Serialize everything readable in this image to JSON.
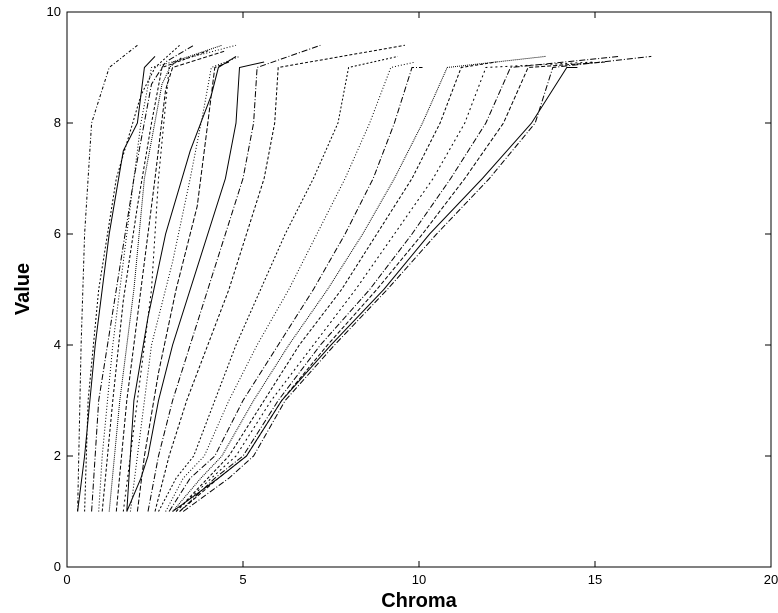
{
  "chart_data": {
    "type": "line",
    "title": "",
    "xlabel": "Chroma",
    "ylabel": "Value",
    "xlim": [
      0,
      20
    ],
    "ylim": [
      0,
      10
    ],
    "xticks": [
      0,
      5,
      10,
      15,
      20
    ],
    "yticks": [
      0,
      2,
      4,
      6,
      8,
      10
    ],
    "grid": false,
    "legend": "none",
    "line_color": "#000000",
    "series": [
      {
        "dash": "3,2,1,2",
        "points": [
          [
            0.3,
            1
          ],
          [
            0.4,
            4
          ],
          [
            0.5,
            6
          ],
          [
            0.7,
            8
          ],
          [
            1.2,
            9
          ],
          [
            2.0,
            9.4
          ]
        ]
      },
      {
        "dash": "",
        "points": [
          [
            0.3,
            1
          ],
          [
            0.5,
            2
          ],
          [
            0.8,
            4
          ],
          [
            1.2,
            6
          ],
          [
            1.6,
            7.5
          ],
          [
            2.0,
            8
          ],
          [
            2.2,
            9
          ],
          [
            2.5,
            9.2
          ]
        ]
      },
      {
        "dash": "2,2",
        "points": [
          [
            0.5,
            1
          ],
          [
            0.6,
            3
          ],
          [
            0.9,
            5
          ],
          [
            1.4,
            7
          ],
          [
            2.1,
            8.5
          ],
          [
            2.5,
            9
          ],
          [
            3.2,
            9.4
          ]
        ]
      },
      {
        "dash": "6,2,1,2",
        "points": [
          [
            0.7,
            1
          ],
          [
            0.9,
            3
          ],
          [
            1.4,
            5
          ],
          [
            1.9,
            7
          ],
          [
            2.4,
            8.7
          ],
          [
            2.8,
            9.1
          ],
          [
            3.6,
            9.4
          ]
        ]
      },
      {
        "dash": "1,2",
        "points": [
          [
            0.9,
            1
          ],
          [
            1.0,
            2
          ],
          [
            1.3,
            4
          ],
          [
            1.7,
            6
          ],
          [
            2.1,
            8
          ],
          [
            2.4,
            9
          ],
          [
            4.8,
            9.4
          ]
        ]
      },
      {
        "dash": "3,2",
        "points": [
          [
            1.0,
            1
          ],
          [
            1.3,
            3
          ],
          [
            1.6,
            4.8
          ],
          [
            2.0,
            6.5
          ],
          [
            2.4,
            8
          ],
          [
            2.7,
            9
          ],
          [
            4.0,
            9.3
          ]
        ]
      },
      {
        "dash": "1,1",
        "points": [
          [
            1.2,
            1
          ],
          [
            1.5,
            3
          ],
          [
            1.9,
            5
          ],
          [
            2.2,
            7
          ],
          [
            2.7,
            8.7
          ],
          [
            3.0,
            9.1
          ],
          [
            4.4,
            9.4
          ]
        ]
      },
      {
        "dash": "4,2",
        "points": [
          [
            1.4,
            1
          ],
          [
            1.7,
            3
          ],
          [
            2.1,
            5
          ],
          [
            2.5,
            7
          ],
          [
            2.8,
            8.6
          ],
          [
            3.0,
            9.0
          ],
          [
            4.5,
            9.3
          ]
        ]
      },
      {
        "dash": "2,3",
        "points": [
          [
            1.6,
            1
          ],
          [
            2.0,
            3
          ],
          [
            2.4,
            5
          ],
          [
            2.6,
            7
          ],
          [
            2.9,
            9
          ],
          [
            3.3,
            9.2
          ]
        ]
      },
      {
        "dash": "",
        "points": [
          [
            1.7,
            1
          ],
          [
            1.9,
            3
          ],
          [
            2.3,
            4.5
          ],
          [
            2.8,
            6
          ],
          [
            3.5,
            7.5
          ],
          [
            4.1,
            8.5
          ],
          [
            4.3,
            9.0
          ],
          [
            4.8,
            9.2
          ]
        ]
      },
      {
        "dash": "1,2",
        "points": [
          [
            1.8,
            1
          ],
          [
            2.0,
            2
          ],
          [
            2.4,
            4
          ],
          [
            3.0,
            5.5
          ],
          [
            3.5,
            7
          ],
          [
            3.9,
            8.3
          ],
          [
            4.1,
            9.0
          ],
          [
            4.9,
            9.2
          ]
        ]
      },
      {
        "dash": "5,2",
        "points": [
          [
            2.0,
            1
          ],
          [
            2.2,
            2
          ],
          [
            2.6,
            3.5
          ],
          [
            3.1,
            5
          ],
          [
            3.7,
            6.5
          ],
          [
            4.0,
            8
          ],
          [
            4.2,
            9.0
          ],
          [
            4.6,
            9.1
          ]
        ]
      },
      {
        "dash": "",
        "points": [
          [
            1.7,
            1
          ],
          [
            2.1,
            1.6
          ],
          [
            2.3,
            2
          ],
          [
            2.6,
            3
          ],
          [
            3.0,
            4
          ],
          [
            3.5,
            5
          ],
          [
            4.0,
            6
          ],
          [
            4.5,
            7
          ],
          [
            4.8,
            8
          ],
          [
            4.9,
            9.0
          ],
          [
            5.6,
            9.1
          ]
        ]
      },
      {
        "dash": "6,2,1,2",
        "points": [
          [
            2.3,
            1
          ],
          [
            2.6,
            2
          ],
          [
            3.0,
            3
          ],
          [
            3.5,
            4
          ],
          [
            4.0,
            5
          ],
          [
            4.5,
            6
          ],
          [
            5.0,
            7
          ],
          [
            5.3,
            8
          ],
          [
            5.4,
            9.0
          ],
          [
            7.2,
            9.4
          ]
        ]
      },
      {
        "dash": "3,2",
        "points": [
          [
            2.5,
            1
          ],
          [
            2.9,
            2
          ],
          [
            3.4,
            3
          ],
          [
            4.0,
            4
          ],
          [
            4.6,
            5
          ],
          [
            5.1,
            6
          ],
          [
            5.6,
            7
          ],
          [
            5.9,
            8
          ],
          [
            6.0,
            9.0
          ],
          [
            9.6,
            9.4
          ]
        ]
      },
      {
        "dash": "2,2",
        "points": [
          [
            2.6,
            1
          ],
          [
            3.1,
            1.6
          ],
          [
            3.6,
            2
          ],
          [
            4.2,
            3
          ],
          [
            4.8,
            4
          ],
          [
            5.5,
            5
          ],
          [
            6.2,
            6
          ],
          [
            7.0,
            7
          ],
          [
            7.7,
            8
          ],
          [
            8.0,
            9.0
          ],
          [
            9.4,
            9.2
          ]
        ]
      },
      {
        "dash": "1,2",
        "points": [
          [
            2.8,
            1
          ],
          [
            3.3,
            1.6
          ],
          [
            3.9,
            2
          ],
          [
            4.6,
            3
          ],
          [
            5.4,
            4
          ],
          [
            6.3,
            5
          ],
          [
            7.1,
            6
          ],
          [
            7.9,
            7
          ],
          [
            8.6,
            8
          ],
          [
            9.2,
            9.0
          ],
          [
            9.9,
            9.1
          ]
        ]
      },
      {
        "dash": "6,2,1,2",
        "points": [
          [
            2.9,
            1
          ],
          [
            3.5,
            1.6
          ],
          [
            4.2,
            2
          ],
          [
            5.0,
            3
          ],
          [
            6.0,
            4
          ],
          [
            7.0,
            5
          ],
          [
            7.9,
            6
          ],
          [
            8.7,
            7
          ],
          [
            9.3,
            8
          ],
          [
            9.8,
            9.0
          ],
          [
            10.1,
            9.0
          ]
        ]
      },
      {
        "dash": "1,1",
        "points": [
          [
            3.0,
            1
          ],
          [
            3.8,
            1.6
          ],
          [
            4.4,
            2
          ],
          [
            5.3,
            3
          ],
          [
            6.3,
            4
          ],
          [
            7.4,
            5
          ],
          [
            8.4,
            6
          ],
          [
            9.3,
            7
          ],
          [
            10.1,
            8
          ],
          [
            10.8,
            9.0
          ],
          [
            13.6,
            9.2
          ]
        ]
      },
      {
        "dash": "3,2",
        "points": [
          [
            3.1,
            1
          ],
          [
            4.0,
            1.6
          ],
          [
            4.6,
            2
          ],
          [
            5.6,
            3
          ],
          [
            6.6,
            4
          ],
          [
            7.8,
            5
          ],
          [
            8.8,
            6
          ],
          [
            9.8,
            7
          ],
          [
            10.6,
            8
          ],
          [
            11.2,
            9.0
          ],
          [
            12.2,
            9.1
          ]
        ]
      },
      {
        "dash": "2,3",
        "points": [
          [
            3.1,
            1
          ],
          [
            4.1,
            1.6
          ],
          [
            4.8,
            2
          ],
          [
            5.8,
            3
          ],
          [
            7.0,
            4
          ],
          [
            8.2,
            5
          ],
          [
            9.3,
            6
          ],
          [
            10.4,
            7
          ],
          [
            11.3,
            8
          ],
          [
            11.9,
            9.0
          ],
          [
            15.0,
            9.1
          ]
        ]
      },
      {
        "dash": "6,2,1,2",
        "points": [
          [
            3.2,
            1
          ],
          [
            4.2,
            1.6
          ],
          [
            5.0,
            2
          ],
          [
            6.0,
            3
          ],
          [
            7.2,
            4
          ],
          [
            8.6,
            5
          ],
          [
            9.8,
            6
          ],
          [
            10.9,
            7
          ],
          [
            11.9,
            8
          ],
          [
            12.6,
            9.0
          ],
          [
            15.7,
            9.2
          ]
        ]
      },
      {
        "dash": "4,2",
        "points": [
          [
            3.2,
            1
          ],
          [
            4.3,
            1.6
          ],
          [
            5.1,
            2
          ],
          [
            6.1,
            3
          ],
          [
            7.4,
            4
          ],
          [
            8.8,
            5
          ],
          [
            10.1,
            6
          ],
          [
            11.3,
            7
          ],
          [
            12.4,
            8
          ],
          [
            13.1,
            9.0
          ],
          [
            15.3,
            9.1
          ]
        ]
      },
      {
        "dash": "",
        "points": [
          [
            3.0,
            1
          ],
          [
            4.3,
            1.6
          ],
          [
            5.1,
            2
          ],
          [
            6.1,
            3
          ],
          [
            7.5,
            4
          ],
          [
            9.0,
            5
          ],
          [
            10.3,
            6
          ],
          [
            11.8,
            7
          ],
          [
            13.2,
            8
          ],
          [
            14.2,
            9.0
          ],
          [
            14.5,
            9.0
          ]
        ]
      },
      {
        "dash": "6,2,1,2",
        "points": [
          [
            3.3,
            1
          ],
          [
            4.6,
            1.6
          ],
          [
            5.3,
            2
          ],
          [
            6.2,
            3
          ],
          [
            7.6,
            4
          ],
          [
            9.1,
            5
          ],
          [
            10.5,
            6
          ],
          [
            12.0,
            7
          ],
          [
            13.3,
            8
          ],
          [
            13.8,
            9.0
          ],
          [
            16.6,
            9.2
          ]
        ]
      }
    ]
  }
}
